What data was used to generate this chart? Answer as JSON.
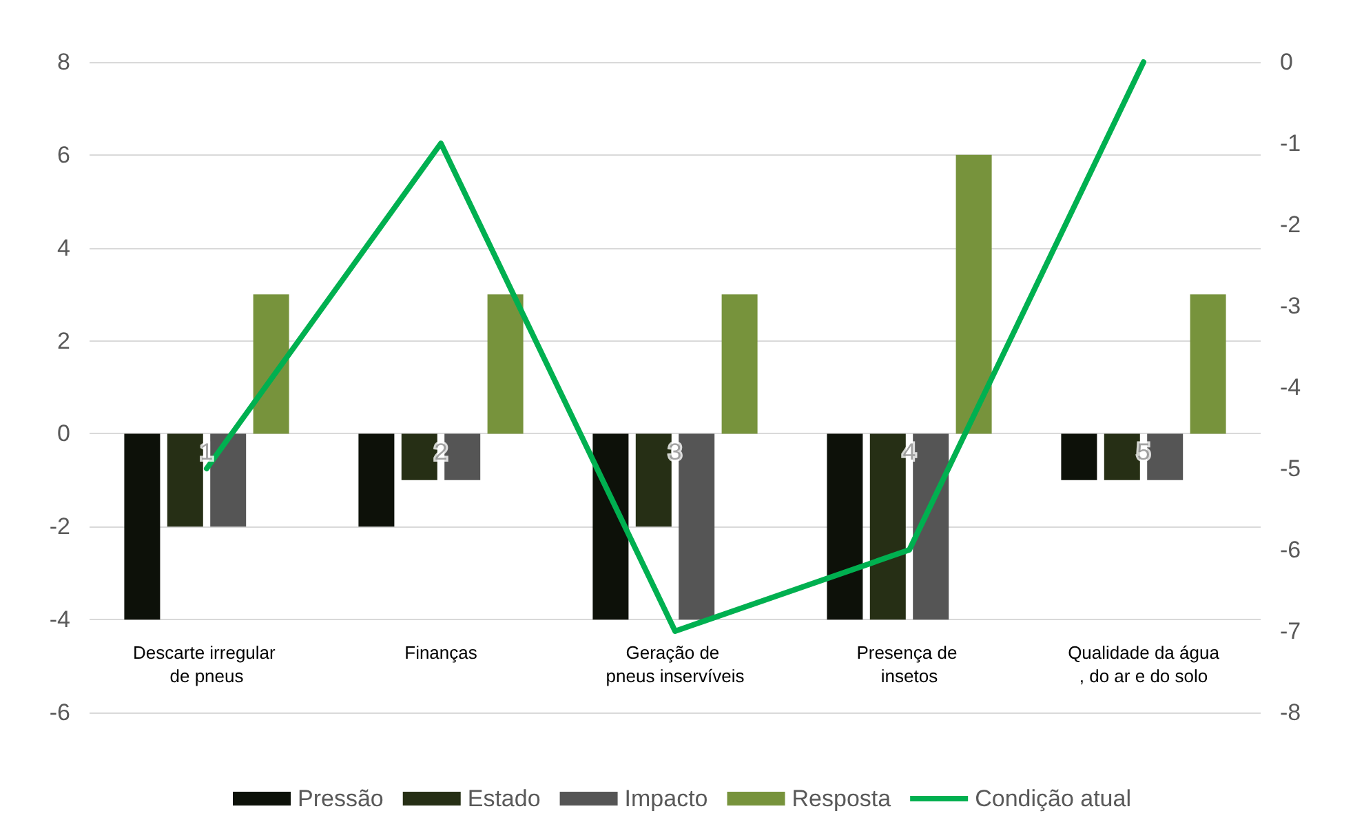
{
  "chart_data": {
    "type": "bar",
    "categories": [
      "Descarte irregular de pneus",
      "Finanças",
      "Geração de pneus inservíveis",
      "Presença de insetos",
      "Qualidade da água, do ar e do solo"
    ],
    "series": [
      {
        "name": "Pressão",
        "color": "#0d1109",
        "values": [
          -4,
          -2,
          -4,
          -4,
          -1
        ]
      },
      {
        "name": "Estado",
        "color": "#262f15",
        "values": [
          -2,
          -1,
          -2,
          -4,
          -1
        ]
      },
      {
        "name": "Impacto",
        "color": "#555555",
        "values": [
          -2,
          -1,
          -4,
          -4,
          -1
        ]
      },
      {
        "name": "Resposta",
        "color": "#77933c",
        "values": [
          3,
          3,
          3,
          6,
          3
        ]
      },
      {
        "name": "Condição atual",
        "color": "#00b050",
        "type": "line",
        "axis": "y2",
        "values": [
          -5,
          -1,
          -7,
          -6,
          0
        ]
      }
    ],
    "ylim": [
      -6,
      8
    ],
    "yticks": [
      -6,
      -4,
      -2,
      0,
      2,
      4,
      6,
      8
    ],
    "y2lim": [
      -8,
      0
    ],
    "y2ticks": [
      -8,
      -7,
      -6,
      -5,
      -4,
      -3,
      -2,
      -1,
      0
    ],
    "annotations": [
      {
        "text": "1",
        "x": "Descarte irregular de pneus",
        "y": -0.4
      },
      {
        "text": "2",
        "x": "Finanças",
        "y": -0.4
      },
      {
        "text": "3",
        "x": "Geração de pneus inservíveis",
        "y": -0.4
      },
      {
        "text": "4",
        "x": "Presença de insetos",
        "y": -0.4
      },
      {
        "text": "5",
        "x": "Qualidade da água, do ar e do solo",
        "y": -0.4
      }
    ],
    "grid": "y",
    "legend": "bottom",
    "marker": "none",
    "line_style": "solid"
  }
}
